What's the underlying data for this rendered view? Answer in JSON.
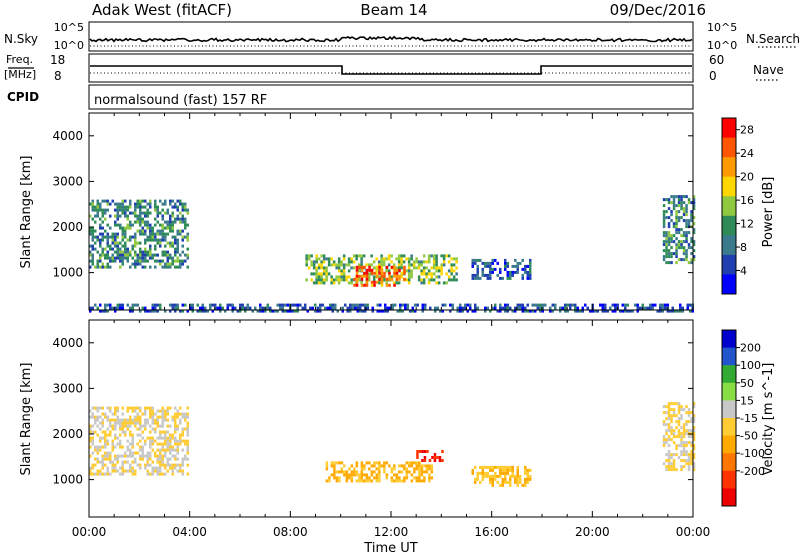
{
  "header": {
    "site": "Adak West (fitACF)",
    "beam": "Beam 14",
    "date": "09/Dec/2016"
  },
  "panels": {
    "nsky_label": "N.Sky",
    "nsearch_label": "N.Search",
    "nsky_ticks": [
      "10^5",
      "10^0"
    ],
    "nsearch_ticks": [
      "10^5",
      "10^0"
    ],
    "freq_label_line1": "Freq.",
    "freq_label_line2": "[MHz]",
    "freq_ticks": [
      "18",
      "8"
    ],
    "nave_label": "Nave",
    "nave_ticks": [
      "60",
      "0"
    ],
    "cpid_label": "CPID",
    "cpid_text": "normalsound (fast) 157 RF"
  },
  "colors": {
    "power": [
      "#0000ff",
      "#1f3fb0",
      "#3a7a8c",
      "#2e8b57",
      "#90c840",
      "#ffd700",
      "#ff9900",
      "#ff5500",
      "#ff0000"
    ],
    "velocity": [
      "#0000cc",
      "#2255cc",
      "#33aa33",
      "#88dd44",
      "#c8c8c8",
      "#ffcc33",
      "#ffaa00",
      "#ff7700",
      "#ff3300",
      "#ee0000"
    ]
  },
  "chart_data": [
    {
      "type": "heatmap",
      "name": "power",
      "ylabel": "Slant Range [km]",
      "xlabel": "Time UT",
      "xlim": [
        "00:00",
        "24:00"
      ],
      "ylim": [
        180,
        4500
      ],
      "x_ticks": [
        "00:00",
        "04:00",
        "08:00",
        "12:00",
        "16:00",
        "20:00",
        "00:00"
      ],
      "y_ticks": [
        1000,
        2000,
        3000,
        4000
      ],
      "colorbar": {
        "label": "Power [dB]",
        "ticks": [
          4,
          8,
          12,
          16,
          20,
          24,
          28
        ],
        "range": [
          0,
          30
        ]
      },
      "regions": [
        {
          "t0": 0.0,
          "t1": 3.9,
          "r0": 1100,
          "r1": 2600,
          "value": 10
        },
        {
          "t0": 8.6,
          "t1": 14.6,
          "r0": 800,
          "r1": 1400,
          "value": 14
        },
        {
          "t0": 10.5,
          "t1": 12.5,
          "r0": 750,
          "r1": 1150,
          "value": 24
        },
        {
          "t0": 15.2,
          "t1": 17.5,
          "r0": 900,
          "r1": 1300,
          "value": 6
        },
        {
          "t0": 22.8,
          "t1": 24.0,
          "r0": 1200,
          "r1": 2700,
          "value": 10
        },
        {
          "t0": 0.0,
          "t1": 24.0,
          "r0": 180,
          "r1": 320,
          "value": 6
        }
      ]
    },
    {
      "type": "heatmap",
      "name": "velocity",
      "ylabel": "Slant Range [km]",
      "xlabel": "Time UT",
      "xlim": [
        "00:00",
        "24:00"
      ],
      "ylim": [
        180,
        4500
      ],
      "x_ticks": [
        "00:00",
        "04:00",
        "08:00",
        "12:00",
        "16:00",
        "20:00",
        "00:00"
      ],
      "y_ticks": [
        1000,
        2000,
        3000,
        4000
      ],
      "colorbar": {
        "label": "Velocity [m s^-1]",
        "ticks": [
          200,
          100,
          50,
          15,
          -15,
          -50,
          -100,
          -200
        ],
        "range": [
          -250,
          250
        ]
      },
      "regions": [
        {
          "t0": 0.0,
          "t1": 3.9,
          "r0": 1100,
          "r1": 2600,
          "value": 0
        },
        {
          "t0": 9.4,
          "t1": 13.6,
          "r0": 950,
          "r1": 1400,
          "value": -60
        },
        {
          "t0": 13.0,
          "t1": 14.0,
          "r0": 1400,
          "r1": 1650,
          "value": -200
        },
        {
          "t0": 15.2,
          "t1": 17.5,
          "r0": 900,
          "r1": 1300,
          "value": -40
        },
        {
          "t0": 22.8,
          "t1": 24.0,
          "r0": 1200,
          "r1": 2700,
          "value": 0
        }
      ]
    }
  ]
}
